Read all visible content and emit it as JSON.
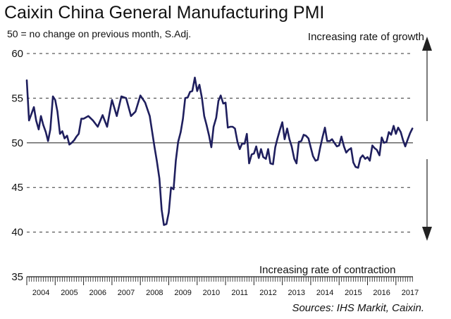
{
  "title": "Caixin China General Manufacturing PMI",
  "subtitle": "50 = no change on previous month, S.Adj.",
  "annotation_growth": "Increasing rate of growth",
  "annotation_contraction": "Increasing rate of contraction",
  "source": "Sources: IHS Markit, Caixin.",
  "colors": {
    "line": "#1f1f5e",
    "axis": "#222222",
    "grid": "#333333"
  },
  "chart_data": {
    "type": "line",
    "title": "Caixin China General Manufacturing PMI",
    "xlabel": "",
    "ylabel": "",
    "ylim": [
      35,
      60
    ],
    "yticks": [
      35,
      40,
      45,
      50,
      55,
      60
    ],
    "reference_line": 50,
    "x_range": [
      2004.0,
      2017.6
    ],
    "x_tick_labels": [
      "2004",
      "2005",
      "2006",
      "2007",
      "2008",
      "2009",
      "2010",
      "2011",
      "2012",
      "2013",
      "2014",
      "2015",
      "2016",
      "2017"
    ],
    "series": [
      {
        "name": "PMI",
        "x": [
          2004.0,
          2004.08,
          2004.17,
          2004.25,
          2004.33,
          2004.42,
          2004.5,
          2004.58,
          2004.67,
          2004.75,
          2004.83,
          2004.92,
          2005.0,
          2005.08,
          2005.17,
          2005.25,
          2005.33,
          2005.42,
          2005.5,
          2005.58,
          2005.67,
          2005.75,
          2005.83,
          2005.92,
          2006.0,
          2006.17,
          2006.33,
          2006.5,
          2006.67,
          2006.83,
          2007.0,
          2007.17,
          2007.33,
          2007.5,
          2007.67,
          2007.83,
          2008.0,
          2008.17,
          2008.33,
          2008.5,
          2008.58,
          2008.67,
          2008.75,
          2008.83,
          2008.92,
          2009.0,
          2009.08,
          2009.17,
          2009.25,
          2009.33,
          2009.42,
          2009.5,
          2009.58,
          2009.67,
          2009.75,
          2009.83,
          2009.92,
          2010.0,
          2010.08,
          2010.17,
          2010.25,
          2010.33,
          2010.42,
          2010.5,
          2010.58,
          2010.67,
          2010.75,
          2010.83,
          2010.92,
          2011.0,
          2011.08,
          2011.17,
          2011.25,
          2011.33,
          2011.42,
          2011.5,
          2011.58,
          2011.67,
          2011.75,
          2011.83,
          2011.92,
          2012.0,
          2012.08,
          2012.17,
          2012.25,
          2012.33,
          2012.42,
          2012.5,
          2012.58,
          2012.67,
          2012.75,
          2012.83,
          2012.92,
          2013.0,
          2013.08,
          2013.17,
          2013.25,
          2013.33,
          2013.42,
          2013.5,
          2013.58,
          2013.67,
          2013.75,
          2013.83,
          2013.92,
          2014.0,
          2014.08,
          2014.17,
          2014.25,
          2014.33,
          2014.42,
          2014.5,
          2014.58,
          2014.67,
          2014.75,
          2014.83,
          2014.92,
          2015.0,
          2015.08,
          2015.17,
          2015.25,
          2015.33,
          2015.42,
          2015.5,
          2015.58,
          2015.67,
          2015.75,
          2015.83,
          2015.92,
          2016.0,
          2016.08,
          2016.17,
          2016.25,
          2016.33,
          2016.42,
          2016.5,
          2016.58,
          2016.67,
          2016.75,
          2016.83,
          2016.92,
          2017.0,
          2017.08,
          2017.17,
          2017.25,
          2017.33,
          2017.42,
          2017.5,
          2017.58
        ],
        "values": [
          57.0,
          52.5,
          53.3,
          54.0,
          52.5,
          51.5,
          53.0,
          52.0,
          51.2,
          50.2,
          51.5,
          55.2,
          54.8,
          53.5,
          51.0,
          51.3,
          50.5,
          50.8,
          49.8,
          50.0,
          50.3,
          50.7,
          51.0,
          52.7,
          52.7,
          53.0,
          52.5,
          51.8,
          53.1,
          51.8,
          54.8,
          53.0,
          55.2,
          55.0,
          53.0,
          53.5,
          55.3,
          54.5,
          53.0,
          49.5,
          48.0,
          46.0,
          42.5,
          40.8,
          40.9,
          42.2,
          45.0,
          44.8,
          48.0,
          50.1,
          51.2,
          52.7,
          55.0,
          55.1,
          55.7,
          55.8,
          57.3,
          55.8,
          56.5,
          55.0,
          53.0,
          52.0,
          50.8,
          49.5,
          51.8,
          52.8,
          54.7,
          55.3,
          54.4,
          54.5,
          51.7,
          51.8,
          51.8,
          51.6,
          50.1,
          49.3,
          49.9,
          49.9,
          51.0,
          47.7,
          48.7,
          48.8,
          49.6,
          48.3,
          49.3,
          48.4,
          48.2,
          49.3,
          47.7,
          47.6,
          49.5,
          50.5,
          51.5,
          52.3,
          50.4,
          51.6,
          50.4,
          49.6,
          48.2,
          47.7,
          50.1,
          50.2,
          50.9,
          50.8,
          50.5,
          49.5,
          48.5,
          48.0,
          48.1,
          49.4,
          50.7,
          51.7,
          50.2,
          50.2,
          50.4,
          50.0,
          49.6,
          49.7,
          50.7,
          49.6,
          48.9,
          49.2,
          49.4,
          47.8,
          47.3,
          47.2,
          48.3,
          48.6,
          48.2,
          48.4,
          48.0,
          49.7,
          49.4,
          49.2,
          48.6,
          50.6,
          50.0,
          50.1,
          51.2,
          50.9,
          51.9,
          51.0,
          51.7,
          51.2,
          50.3,
          49.6,
          50.4,
          51.1,
          51.6
        ]
      }
    ]
  }
}
